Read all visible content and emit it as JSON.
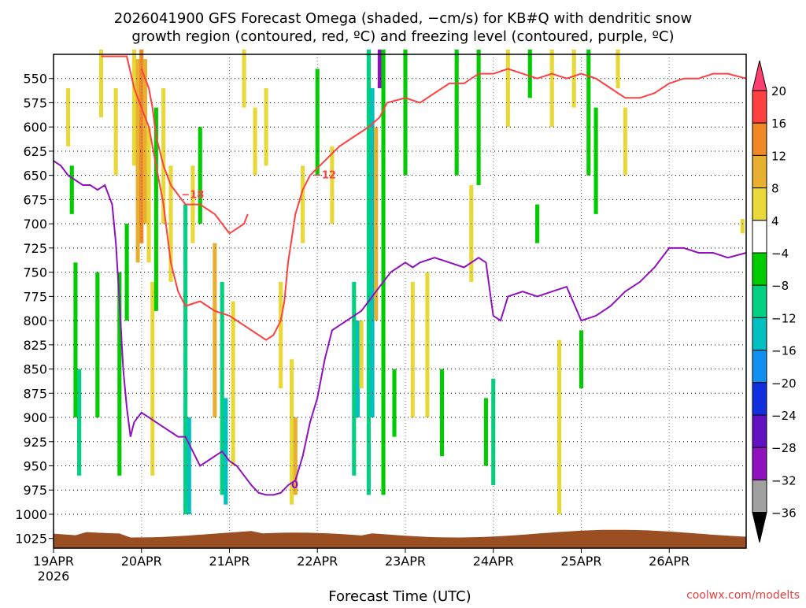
{
  "title_line1": "2026041900 GFS Forecast Omega (shaded, −cm/s) for KB#Q with dendritic snow",
  "title_line2": "growth region (contoured, red, ºC) and freezing level (contoured, purple, ºC)",
  "credit": "coolwx.com/modelts",
  "chart_data": {
    "type": "heatmap",
    "xlabel": "Forecast Time (UTC)",
    "x_hours_range": [
      0,
      189
    ],
    "x_ticks": [
      {
        "hour": 0,
        "label": "19APR",
        "sublabel": "2026"
      },
      {
        "hour": 24,
        "label": "20APR"
      },
      {
        "hour": 48,
        "label": "21APR"
      },
      {
        "hour": 72,
        "label": "22APR"
      },
      {
        "hour": 96,
        "label": "23APR"
      },
      {
        "hour": 120,
        "label": "24APR"
      },
      {
        "hour": 144,
        "label": "25APR"
      },
      {
        "hour": 168,
        "label": "26APR"
      }
    ],
    "ylabel": "",
    "y_ticks_hpa": [
      550,
      575,
      600,
      625,
      650,
      675,
      700,
      725,
      750,
      775,
      800,
      825,
      850,
      875,
      900,
      925,
      950,
      975,
      1000,
      1025
    ],
    "y_range_hpa": [
      525,
      1035
    ],
    "grid": true,
    "colorbar": {
      "levels": [
        "20",
        "16",
        "12",
        "8",
        "4",
        "−4",
        "−8",
        "−12",
        "−16",
        "−20",
        "−24",
        "−28",
        "−32",
        "−36"
      ],
      "colors": [
        "#ff3f6f",
        "#ff4040",
        "#f08828",
        "#e8b030",
        "#e8d838",
        "#ffffff",
        "#00cc00",
        "#00d080",
        "#00c0c0",
        "#1090f0",
        "#1030e0",
        "#6010c0",
        "#9010c0",
        "#a0a0a0",
        "#000000"
      ]
    },
    "omega_cells": [
      {
        "t": 4,
        "p0": 560,
        "p1": 620,
        "v": 5
      },
      {
        "t": 5,
        "p0": 640,
        "p1": 690,
        "v": -6
      },
      {
        "t": 6,
        "p0": 740,
        "p1": 900,
        "v": -6
      },
      {
        "t": 7,
        "p0": 850,
        "p1": 960,
        "v": -9
      },
      {
        "t": 12,
        "p0": 750,
        "p1": 900,
        "v": -6
      },
      {
        "t": 13,
        "p0": 520,
        "p1": 590,
        "v": 5
      },
      {
        "t": 17,
        "p0": 560,
        "p1": 650,
        "v": 5
      },
      {
        "t": 18,
        "p0": 750,
        "p1": 960,
        "v": -6
      },
      {
        "t": 20,
        "p0": 700,
        "p1": 800,
        "v": -6
      },
      {
        "t": 22,
        "p0": 520,
        "p1": 640,
        "v": 6
      },
      {
        "t": 23,
        "p0": 530,
        "p1": 740,
        "v": 10
      },
      {
        "t": 24,
        "p0": 520,
        "p1": 720,
        "v": 12
      },
      {
        "t": 25,
        "p0": 530,
        "p1": 700,
        "v": 10
      },
      {
        "t": 26,
        "p0": 600,
        "p1": 740,
        "v": 7
      },
      {
        "t": 27,
        "p0": 760,
        "p1": 960,
        "v": 5
      },
      {
        "t": 28,
        "p0": 580,
        "p1": 790,
        "v": -7
      },
      {
        "t": 30,
        "p0": 560,
        "p1": 700,
        "v": 6
      },
      {
        "t": 32,
        "p0": 640,
        "p1": 760,
        "v": 5
      },
      {
        "t": 36,
        "p0": 680,
        "p1": 1000,
        "v": -8
      },
      {
        "t": 37,
        "p0": 900,
        "p1": 1000,
        "v": -14
      },
      {
        "t": 38,
        "p0": 640,
        "p1": 720,
        "v": 5
      },
      {
        "t": 40,
        "p0": 600,
        "p1": 700,
        "v": -6
      },
      {
        "t": 44,
        "p0": 720,
        "p1": 900,
        "v": 8
      },
      {
        "t": 46,
        "p0": 760,
        "p1": 980,
        "v": -8
      },
      {
        "t": 47,
        "p0": 880,
        "p1": 990,
        "v": -13
      },
      {
        "t": 49,
        "p0": 780,
        "p1": 950,
        "v": 6
      },
      {
        "t": 52,
        "p0": 520,
        "p1": 580,
        "v": 5
      },
      {
        "t": 55,
        "p0": 580,
        "p1": 650,
        "v": 5
      },
      {
        "t": 58,
        "p0": 560,
        "p1": 640,
        "v": 5
      },
      {
        "t": 62,
        "p0": 760,
        "p1": 870,
        "v": 5
      },
      {
        "t": 65,
        "p0": 840,
        "p1": 990,
        "v": 7
      },
      {
        "t": 66,
        "p0": 900,
        "p1": 980,
        "v": 10
      },
      {
        "t": 68,
        "p0": 640,
        "p1": 720,
        "v": 5
      },
      {
        "t": 72,
        "p0": 540,
        "p1": 650,
        "v": -6
      },
      {
        "t": 76,
        "p0": 620,
        "p1": 700,
        "v": 5
      },
      {
        "t": 82,
        "p0": 760,
        "p1": 960,
        "v": -8
      },
      {
        "t": 83,
        "p0": 800,
        "p1": 900,
        "v": -12
      },
      {
        "t": 84,
        "p0": 800,
        "p1": 870,
        "v": 5
      },
      {
        "t": 86,
        "p0": 520,
        "p1": 980,
        "v": -8
      },
      {
        "t": 87,
        "p0": 560,
        "p1": 900,
        "v": -13
      },
      {
        "t": 88,
        "p0": 600,
        "p1": 800,
        "v": 9
      },
      {
        "t": 89,
        "p0": 520,
        "p1": 560,
        "v": -30
      },
      {
        "t": 90,
        "p0": 520,
        "p1": 980,
        "v": -7
      },
      {
        "t": 93,
        "p0": 850,
        "p1": 920,
        "v": -6
      },
      {
        "t": 96,
        "p0": 520,
        "p1": 650,
        "v": -7
      },
      {
        "t": 98,
        "p0": 760,
        "p1": 900,
        "v": 5
      },
      {
        "t": 102,
        "p0": 750,
        "p1": 900,
        "v": 5
      },
      {
        "t": 106,
        "p0": 850,
        "p1": 940,
        "v": -6
      },
      {
        "t": 110,
        "p0": 520,
        "p1": 650,
        "v": -7
      },
      {
        "t": 114,
        "p0": 660,
        "p1": 760,
        "v": 5
      },
      {
        "t": 116,
        "p0": 520,
        "p1": 660,
        "v": -7
      },
      {
        "t": 118,
        "p0": 880,
        "p1": 950,
        "v": -6
      },
      {
        "t": 120,
        "p0": 860,
        "p1": 970,
        "v": -8
      },
      {
        "t": 124,
        "p0": 520,
        "p1": 600,
        "v": 5
      },
      {
        "t": 130,
        "p0": 520,
        "p1": 570,
        "v": -6
      },
      {
        "t": 132,
        "p0": 680,
        "p1": 720,
        "v": -6
      },
      {
        "t": 136,
        "p0": 520,
        "p1": 600,
        "v": 5
      },
      {
        "t": 138,
        "p0": 820,
        "p1": 1000,
        "v": 5
      },
      {
        "t": 142,
        "p0": 520,
        "p1": 580,
        "v": 6
      },
      {
        "t": 144,
        "p0": 810,
        "p1": 870,
        "v": -7
      },
      {
        "t": 146,
        "p0": 520,
        "p1": 650,
        "v": -7
      },
      {
        "t": 148,
        "p0": 580,
        "p1": 690,
        "v": -6
      },
      {
        "t": 154,
        "p0": 520,
        "p1": 560,
        "v": 5
      },
      {
        "t": 156,
        "p0": 580,
        "p1": 650,
        "v": 5
      },
      {
        "t": 188,
        "p0": 695,
        "p1": 710,
        "v": 5
      }
    ],
    "contours": [
      {
        "color": "#ff4040",
        "label_value": "−12",
        "points": [
          [
            13,
            527
          ],
          [
            20,
            527
          ],
          [
            22,
            560
          ],
          [
            24,
            580
          ],
          [
            26,
            600
          ],
          [
            28,
            640
          ],
          [
            29,
            660
          ],
          [
            30,
            680
          ],
          [
            31,
            710
          ],
          [
            32,
            740
          ],
          [
            34,
            770
          ],
          [
            36,
            785
          ],
          [
            40,
            780
          ],
          [
            44,
            790
          ],
          [
            48,
            795
          ],
          [
            52,
            805
          ],
          [
            56,
            815
          ],
          [
            58,
            820
          ],
          [
            60,
            815
          ],
          [
            62,
            800
          ],
          [
            63,
            780
          ],
          [
            64,
            740
          ],
          [
            66,
            690
          ],
          [
            68,
            665
          ],
          [
            70,
            650
          ],
          [
            74,
            635
          ],
          [
            78,
            620
          ],
          [
            82,
            610
          ],
          [
            86,
            600
          ],
          [
            89,
            590
          ],
          [
            91,
            575
          ],
          [
            96,
            570
          ],
          [
            100,
            575
          ],
          [
            104,
            565
          ],
          [
            108,
            555
          ],
          [
            112,
            555
          ],
          [
            116,
            545
          ],
          [
            120,
            545
          ],
          [
            124,
            540
          ],
          [
            128,
            545
          ],
          [
            132,
            550
          ],
          [
            136,
            545
          ],
          [
            140,
            550
          ],
          [
            144,
            545
          ],
          [
            148,
            550
          ],
          [
            152,
            560
          ],
          [
            156,
            570
          ],
          [
            160,
            570
          ],
          [
            164,
            565
          ],
          [
            168,
            555
          ],
          [
            172,
            550
          ],
          [
            176,
            550
          ],
          [
            180,
            545
          ],
          [
            184,
            545
          ],
          [
            189,
            550
          ]
        ]
      },
      {
        "color": "#ff4040",
        "label_value": "−18",
        "points": [
          [
            24,
            540
          ],
          [
            26,
            560
          ],
          [
            27,
            580
          ],
          [
            28,
            610
          ],
          [
            30,
            640
          ],
          [
            32,
            660
          ],
          [
            34,
            670
          ],
          [
            36,
            680
          ],
          [
            40,
            680
          ],
          [
            44,
            690
          ],
          [
            46,
            700
          ],
          [
            48,
            710
          ],
          [
            50,
            705
          ],
          [
            52,
            700
          ],
          [
            53,
            690
          ]
        ]
      },
      {
        "color": "#9010c0",
        "label_value": "0",
        "points": [
          [
            0,
            635
          ],
          [
            2,
            640
          ],
          [
            4,
            650
          ],
          [
            6,
            655
          ],
          [
            8,
            660
          ],
          [
            10,
            660
          ],
          [
            12,
            665
          ],
          [
            14,
            660
          ],
          [
            16,
            680
          ],
          [
            17,
            720
          ],
          [
            18,
            780
          ],
          [
            19,
            850
          ],
          [
            20,
            890
          ],
          [
            21,
            920
          ],
          [
            22,
            905
          ],
          [
            24,
            895
          ],
          [
            26,
            900
          ],
          [
            28,
            905
          ],
          [
            30,
            910
          ],
          [
            32,
            915
          ],
          [
            34,
            920
          ],
          [
            36,
            920
          ],
          [
            38,
            935
          ],
          [
            40,
            950
          ],
          [
            42,
            945
          ],
          [
            44,
            940
          ],
          [
            46,
            935
          ],
          [
            48,
            945
          ],
          [
            50,
            950
          ],
          [
            52,
            960
          ],
          [
            54,
            970
          ],
          [
            56,
            978
          ],
          [
            58,
            980
          ],
          [
            60,
            980
          ],
          [
            62,
            978
          ],
          [
            64,
            970
          ],
          [
            66,
            965
          ],
          [
            68,
            940
          ],
          [
            70,
            905
          ],
          [
            72,
            880
          ],
          [
            74,
            840
          ],
          [
            76,
            810
          ],
          [
            78,
            805
          ],
          [
            80,
            800
          ],
          [
            82,
            795
          ],
          [
            84,
            790
          ],
          [
            86,
            780
          ],
          [
            88,
            770
          ],
          [
            90,
            760
          ],
          [
            92,
            750
          ],
          [
            94,
            745
          ],
          [
            96,
            740
          ],
          [
            98,
            745
          ],
          [
            100,
            740
          ],
          [
            104,
            735
          ],
          [
            108,
            740
          ],
          [
            112,
            745
          ],
          [
            116,
            735
          ],
          [
            118,
            740
          ],
          [
            120,
            795
          ],
          [
            122,
            800
          ],
          [
            124,
            775
          ],
          [
            128,
            770
          ],
          [
            132,
            775
          ],
          [
            136,
            770
          ],
          [
            140,
            765
          ],
          [
            144,
            800
          ],
          [
            148,
            795
          ],
          [
            152,
            785
          ],
          [
            156,
            770
          ],
          [
            160,
            760
          ],
          [
            164,
            745
          ],
          [
            168,
            725
          ],
          [
            172,
            725
          ],
          [
            176,
            730
          ],
          [
            180,
            730
          ],
          [
            184,
            735
          ],
          [
            189,
            730
          ]
        ]
      }
    ]
  }
}
